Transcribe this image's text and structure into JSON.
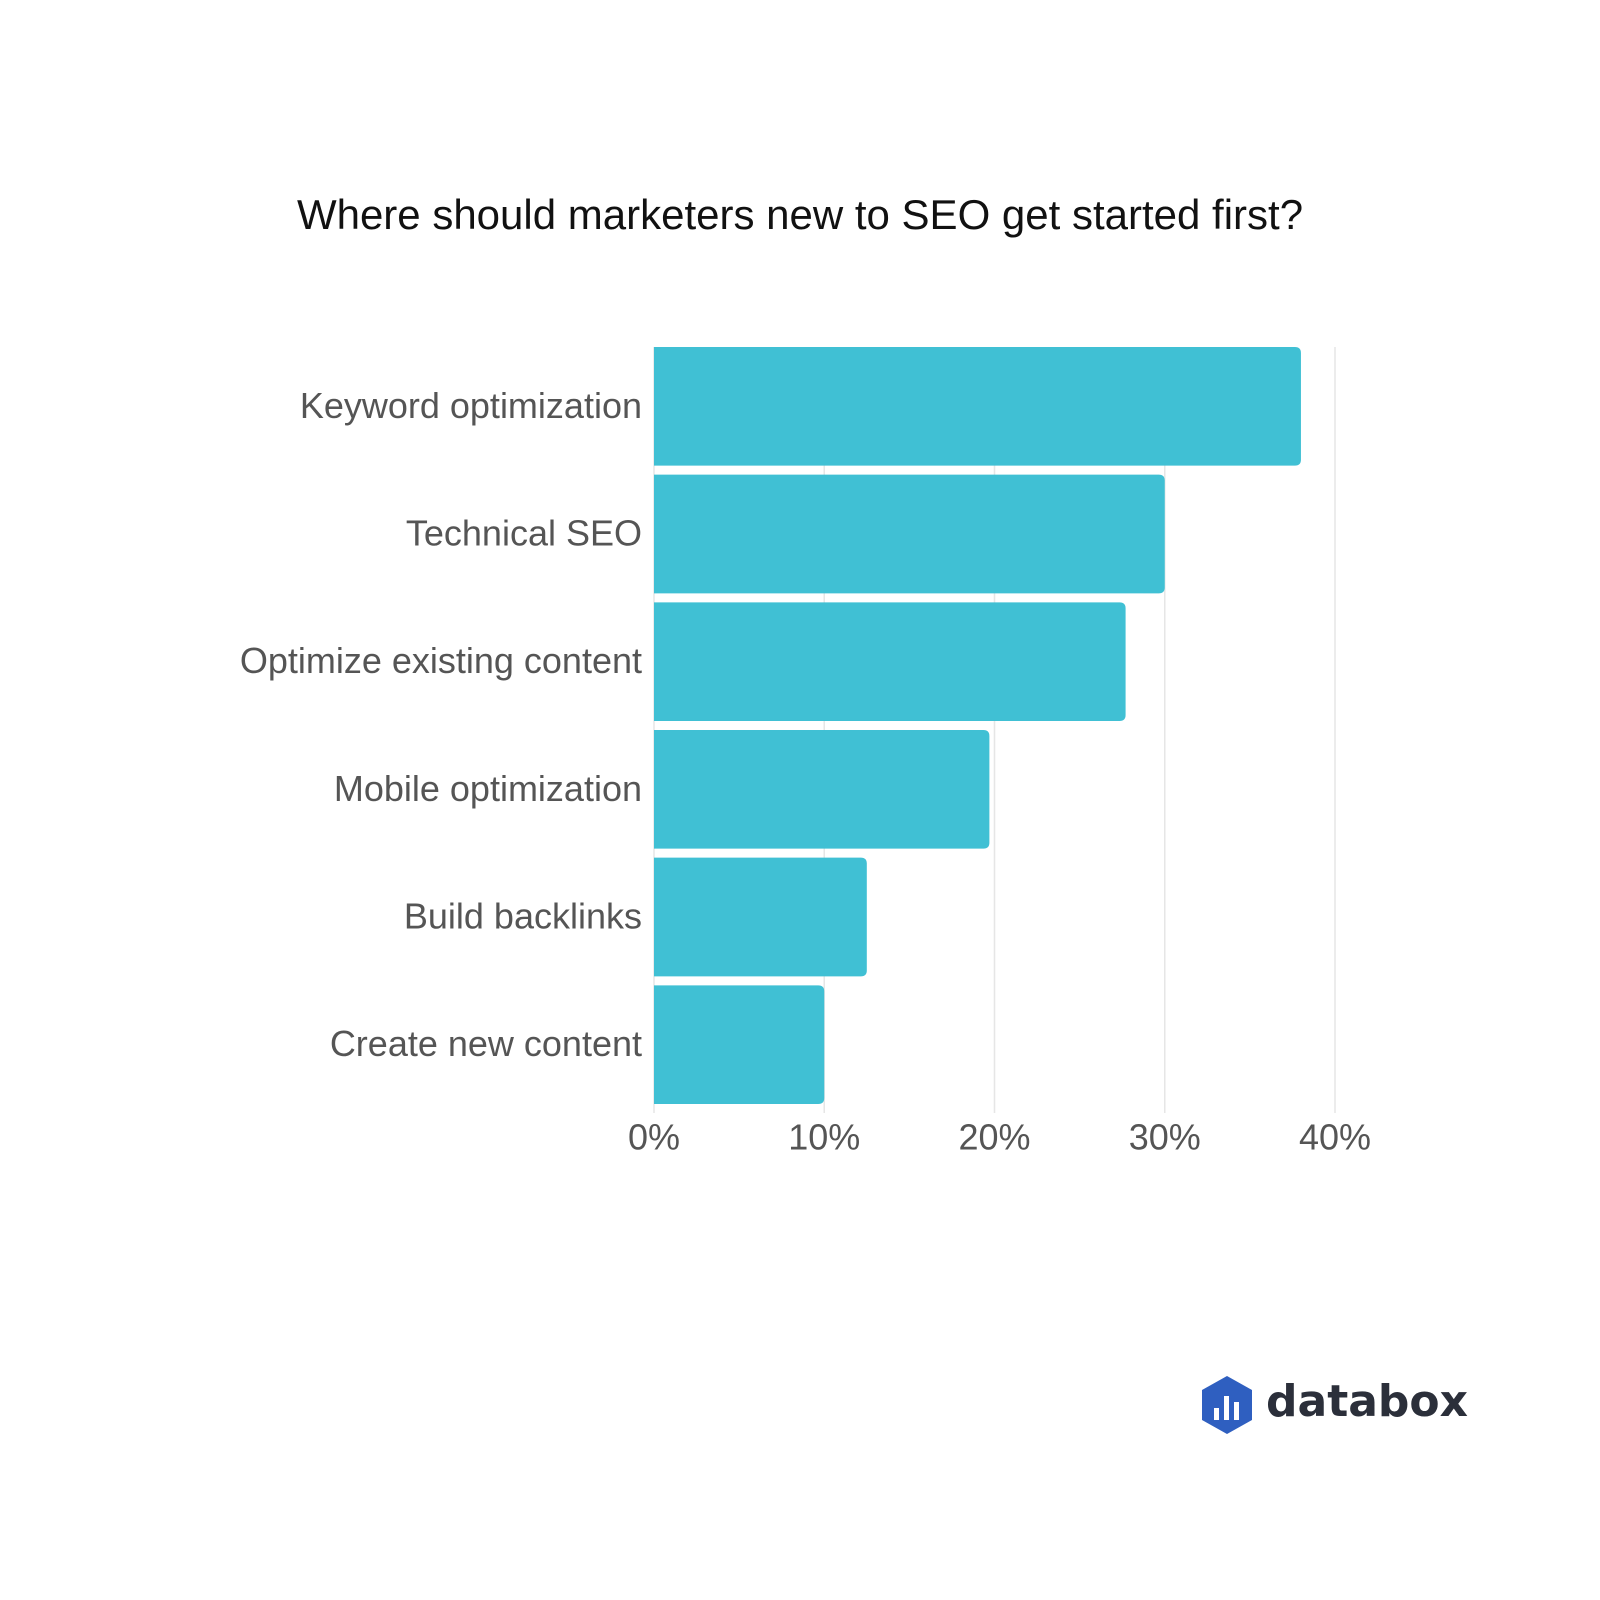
{
  "chart_data": {
    "type": "bar",
    "orientation": "horizontal",
    "title": "Where should marketers new to SEO get started first?",
    "categories": [
      "Keyword optimization",
      "Technical SEO",
      "Optimize existing content",
      "Mobile optimization",
      "Build backlinks",
      "Create new content"
    ],
    "values": [
      38,
      30,
      27.7,
      19.7,
      12.5,
      10
    ],
    "color": "#40c0d4",
    "xlim": [
      0,
      40
    ],
    "xticks": [
      {
        "value": 0,
        "label": "0%"
      },
      {
        "value": 10,
        "label": "10%"
      },
      {
        "value": 20,
        "label": "20%"
      },
      {
        "value": 30,
        "label": "30%"
      },
      {
        "value": 40,
        "label": "40%"
      }
    ],
    "grid": true
  },
  "brand": "databox"
}
